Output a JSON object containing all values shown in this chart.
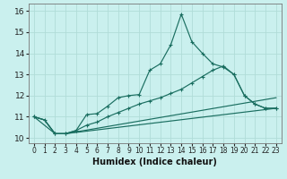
{
  "title": "",
  "xlabel": "Humidex (Indice chaleur)",
  "bg_color": "#caf0ee",
  "grid_color": "#b0dcd8",
  "line_color": "#1a6e60",
  "xlim": [
    -0.5,
    23.5
  ],
  "ylim": [
    9.75,
    16.35
  ],
  "xticks": [
    0,
    1,
    2,
    3,
    4,
    5,
    6,
    7,
    8,
    9,
    10,
    11,
    12,
    13,
    14,
    15,
    16,
    17,
    18,
    19,
    20,
    21,
    22,
    23
  ],
  "yticks": [
    10,
    11,
    12,
    13,
    14,
    15,
    16
  ],
  "line1_x": [
    0,
    1,
    2,
    3,
    4,
    5,
    6,
    7,
    8,
    9,
    10,
    11,
    12,
    13,
    14,
    15,
    16,
    17,
    18,
    19,
    20,
    21,
    22,
    23
  ],
  "line1_y": [
    11.0,
    10.85,
    10.2,
    10.2,
    10.35,
    11.1,
    11.15,
    11.5,
    11.9,
    12.0,
    12.05,
    13.2,
    13.5,
    14.4,
    15.85,
    14.55,
    14.0,
    13.5,
    13.35,
    13.0,
    12.0,
    11.6,
    11.4,
    11.4
  ],
  "line2_x": [
    0,
    2,
    3,
    4,
    5,
    6,
    7,
    8,
    9,
    10,
    11,
    12,
    13,
    14,
    15,
    16,
    17,
    18,
    19,
    20,
    21,
    22,
    23
  ],
  "line2_y": [
    11.0,
    10.2,
    10.2,
    10.35,
    10.6,
    10.75,
    11.0,
    11.2,
    11.4,
    11.6,
    11.75,
    11.9,
    12.1,
    12.3,
    12.6,
    12.9,
    13.2,
    13.4,
    13.0,
    12.0,
    11.6,
    11.4,
    11.4
  ],
  "line3_x": [
    0,
    1,
    2,
    3,
    23
  ],
  "line3_y": [
    11.0,
    10.85,
    10.2,
    10.2,
    11.9
  ],
  "line4_x": [
    0,
    1,
    2,
    3,
    23
  ],
  "line4_y": [
    11.0,
    10.85,
    10.2,
    10.2,
    11.4
  ],
  "xlabel_fontsize": 7,
  "tick_fontsize": 5.5,
  "ytick_fontsize": 6.5
}
